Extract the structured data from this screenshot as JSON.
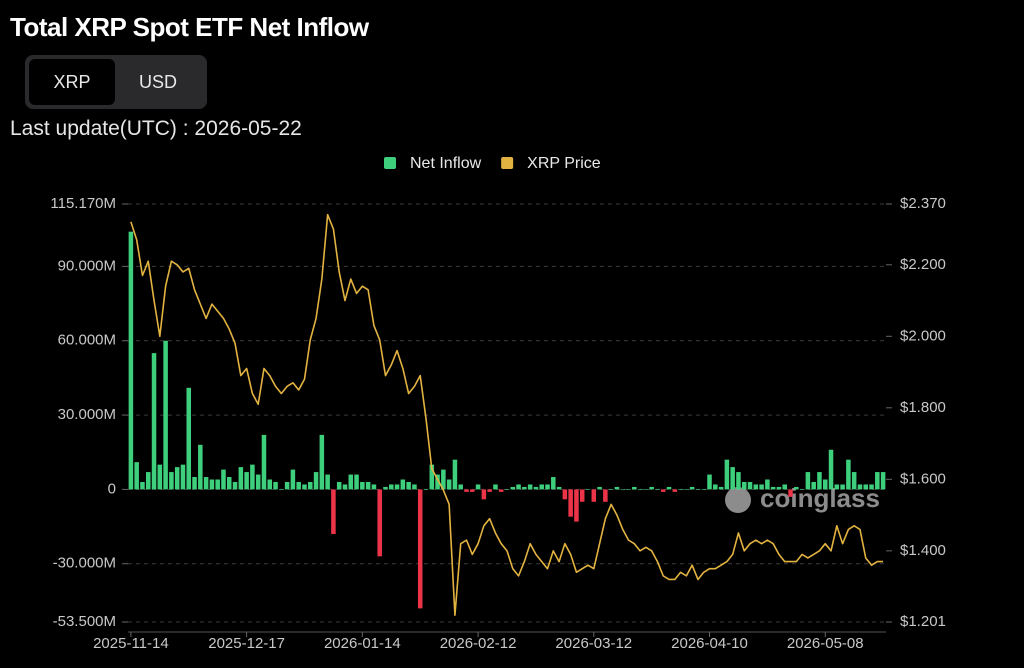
{
  "controls": {
    "tabs": [
      "XRP",
      "USD"
    ],
    "active": 0
  },
  "last_update": "Last update(UTC) : 2026-05-22",
  "chart_data": {
    "type": "bar",
    "title": "Total XRP Spot ETF Net Inflow",
    "watermark": "coinglass",
    "categories": [
      "2025-11-14",
      null,
      null,
      null,
      null,
      null,
      null,
      null,
      null,
      null,
      null,
      null,
      null,
      null,
      null,
      null,
      null,
      null,
      null,
      null,
      "2025-12-17",
      null,
      null,
      null,
      null,
      null,
      null,
      null,
      null,
      null,
      null,
      null,
      null,
      null,
      null,
      null,
      null,
      null,
      null,
      null,
      "2026-01-14",
      null,
      null,
      null,
      null,
      null,
      null,
      null,
      null,
      null,
      null,
      null,
      null,
      null,
      null,
      null,
      null,
      null,
      null,
      null,
      "2026-02-12",
      null,
      null,
      null,
      null,
      null,
      null,
      null,
      null,
      null,
      null,
      null,
      null,
      null,
      null,
      null,
      null,
      null,
      null,
      null,
      "2026-03-12",
      null,
      null,
      null,
      null,
      null,
      null,
      null,
      null,
      null,
      null,
      null,
      null,
      null,
      null,
      null,
      null,
      null,
      null,
      null,
      "2026-04-10",
      null,
      null,
      null,
      null,
      null,
      null,
      null,
      null,
      null,
      null,
      null,
      null,
      null,
      null,
      null,
      null,
      null,
      null,
      null,
      "2026-05-08",
      null,
      null,
      null,
      null,
      null,
      null,
      null,
      null,
      null,
      null
    ],
    "series": [
      {
        "name": "Net Inflow",
        "color": "#3ecf7c",
        "negative_color": "#ec3448",
        "values": [
          104,
          11,
          3,
          7,
          55,
          10,
          60,
          7,
          9,
          10,
          41,
          5,
          18,
          5,
          4,
          4,
          8,
          5,
          3,
          9,
          7,
          10,
          6,
          22,
          4,
          3,
          0,
          3,
          8,
          3,
          2,
          3,
          7,
          22,
          6,
          -18,
          3,
          2,
          6,
          6,
          3,
          3,
          2,
          -27,
          1,
          2,
          2,
          4,
          3,
          2,
          -48,
          0,
          10,
          6,
          8,
          4,
          12,
          2,
          -1,
          -1,
          2,
          -4,
          -1,
          2,
          -1,
          0,
          1,
          2,
          1,
          2,
          1,
          2,
          2,
          5,
          1,
          -4,
          -11,
          -13,
          -5,
          0,
          -5,
          1,
          -5,
          0,
          1,
          0,
          0,
          1,
          0,
          0,
          1,
          0,
          -1,
          1,
          -1,
          0,
          0,
          1,
          0,
          0,
          6,
          2,
          1,
          12,
          9,
          7,
          3,
          3,
          2,
          2,
          4,
          1,
          1,
          2,
          -3,
          1,
          0,
          7,
          3,
          7,
          4,
          16,
          2,
          2,
          12,
          7,
          2,
          2,
          2,
          7,
          7
        ]
      },
      {
        "name": "XRP Price",
        "color": "#e3b341",
        "axis": "y2",
        "type": "line",
        "values": [
          2.32,
          2.27,
          2.17,
          2.21,
          2.1,
          2.0,
          2.14,
          2.21,
          2.2,
          2.18,
          2.19,
          2.13,
          2.09,
          2.05,
          2.09,
          2.07,
          2.05,
          2.02,
          1.98,
          1.89,
          1.91,
          1.84,
          1.81,
          1.91,
          1.89,
          1.86,
          1.84,
          1.86,
          1.87,
          1.85,
          1.88,
          1.99,
          2.05,
          2.16,
          2.34,
          2.3,
          2.18,
          2.1,
          2.16,
          2.12,
          2.14,
          2.13,
          2.03,
          1.99,
          1.89,
          1.92,
          1.96,
          1.91,
          1.84,
          1.86,
          1.89,
          1.77,
          1.63,
          1.6,
          1.57,
          1.53,
          1.22,
          1.42,
          1.43,
          1.39,
          1.42,
          1.47,
          1.49,
          1.45,
          1.42,
          1.4,
          1.35,
          1.33,
          1.37,
          1.42,
          1.39,
          1.37,
          1.35,
          1.4,
          1.37,
          1.42,
          1.39,
          1.34,
          1.35,
          1.36,
          1.35,
          1.42,
          1.49,
          1.53,
          1.5,
          1.46,
          1.43,
          1.42,
          1.4,
          1.41,
          1.4,
          1.37,
          1.33,
          1.32,
          1.32,
          1.34,
          1.33,
          1.36,
          1.32,
          1.34,
          1.35,
          1.35,
          1.36,
          1.37,
          1.39,
          1.45,
          1.4,
          1.42,
          1.43,
          1.42,
          1.43,
          1.42,
          1.39,
          1.37,
          1.37,
          1.37,
          1.39,
          1.38,
          1.39,
          1.4,
          1.42,
          1.4,
          1.47,
          1.42,
          1.46,
          1.47,
          1.46,
          1.38,
          1.36,
          1.37,
          1.37
        ]
      }
    ],
    "ylim": [
      -53.5,
      115.17
    ],
    "yticks": [
      {
        "value": 115.17,
        "label": "115.170M"
      },
      {
        "value": 90,
        "label": "90.000M"
      },
      {
        "value": 60,
        "label": "60.000M"
      },
      {
        "value": 30,
        "label": "30.000M"
      },
      0,
      {
        "value": -30,
        "label": "-30.000M"
      },
      {
        "value": -53.5,
        "label": "-53.500M"
      }
    ],
    "y2lim": [
      1.201,
      2.37
    ],
    "y2ticks": [
      {
        "value": 2.37,
        "label": "$2.370"
      },
      {
        "value": 2.2,
        "label": "$2.200"
      },
      {
        "value": 2.0,
        "label": "$2.000"
      },
      {
        "value": 1.8,
        "label": "$1.800"
      },
      {
        "value": 1.6,
        "label": "$1.600"
      },
      {
        "value": 1.4,
        "label": "$1.400"
      },
      {
        "value": 1.201,
        "label": "$1.201"
      }
    ],
    "grid": true,
    "legend": "top"
  }
}
